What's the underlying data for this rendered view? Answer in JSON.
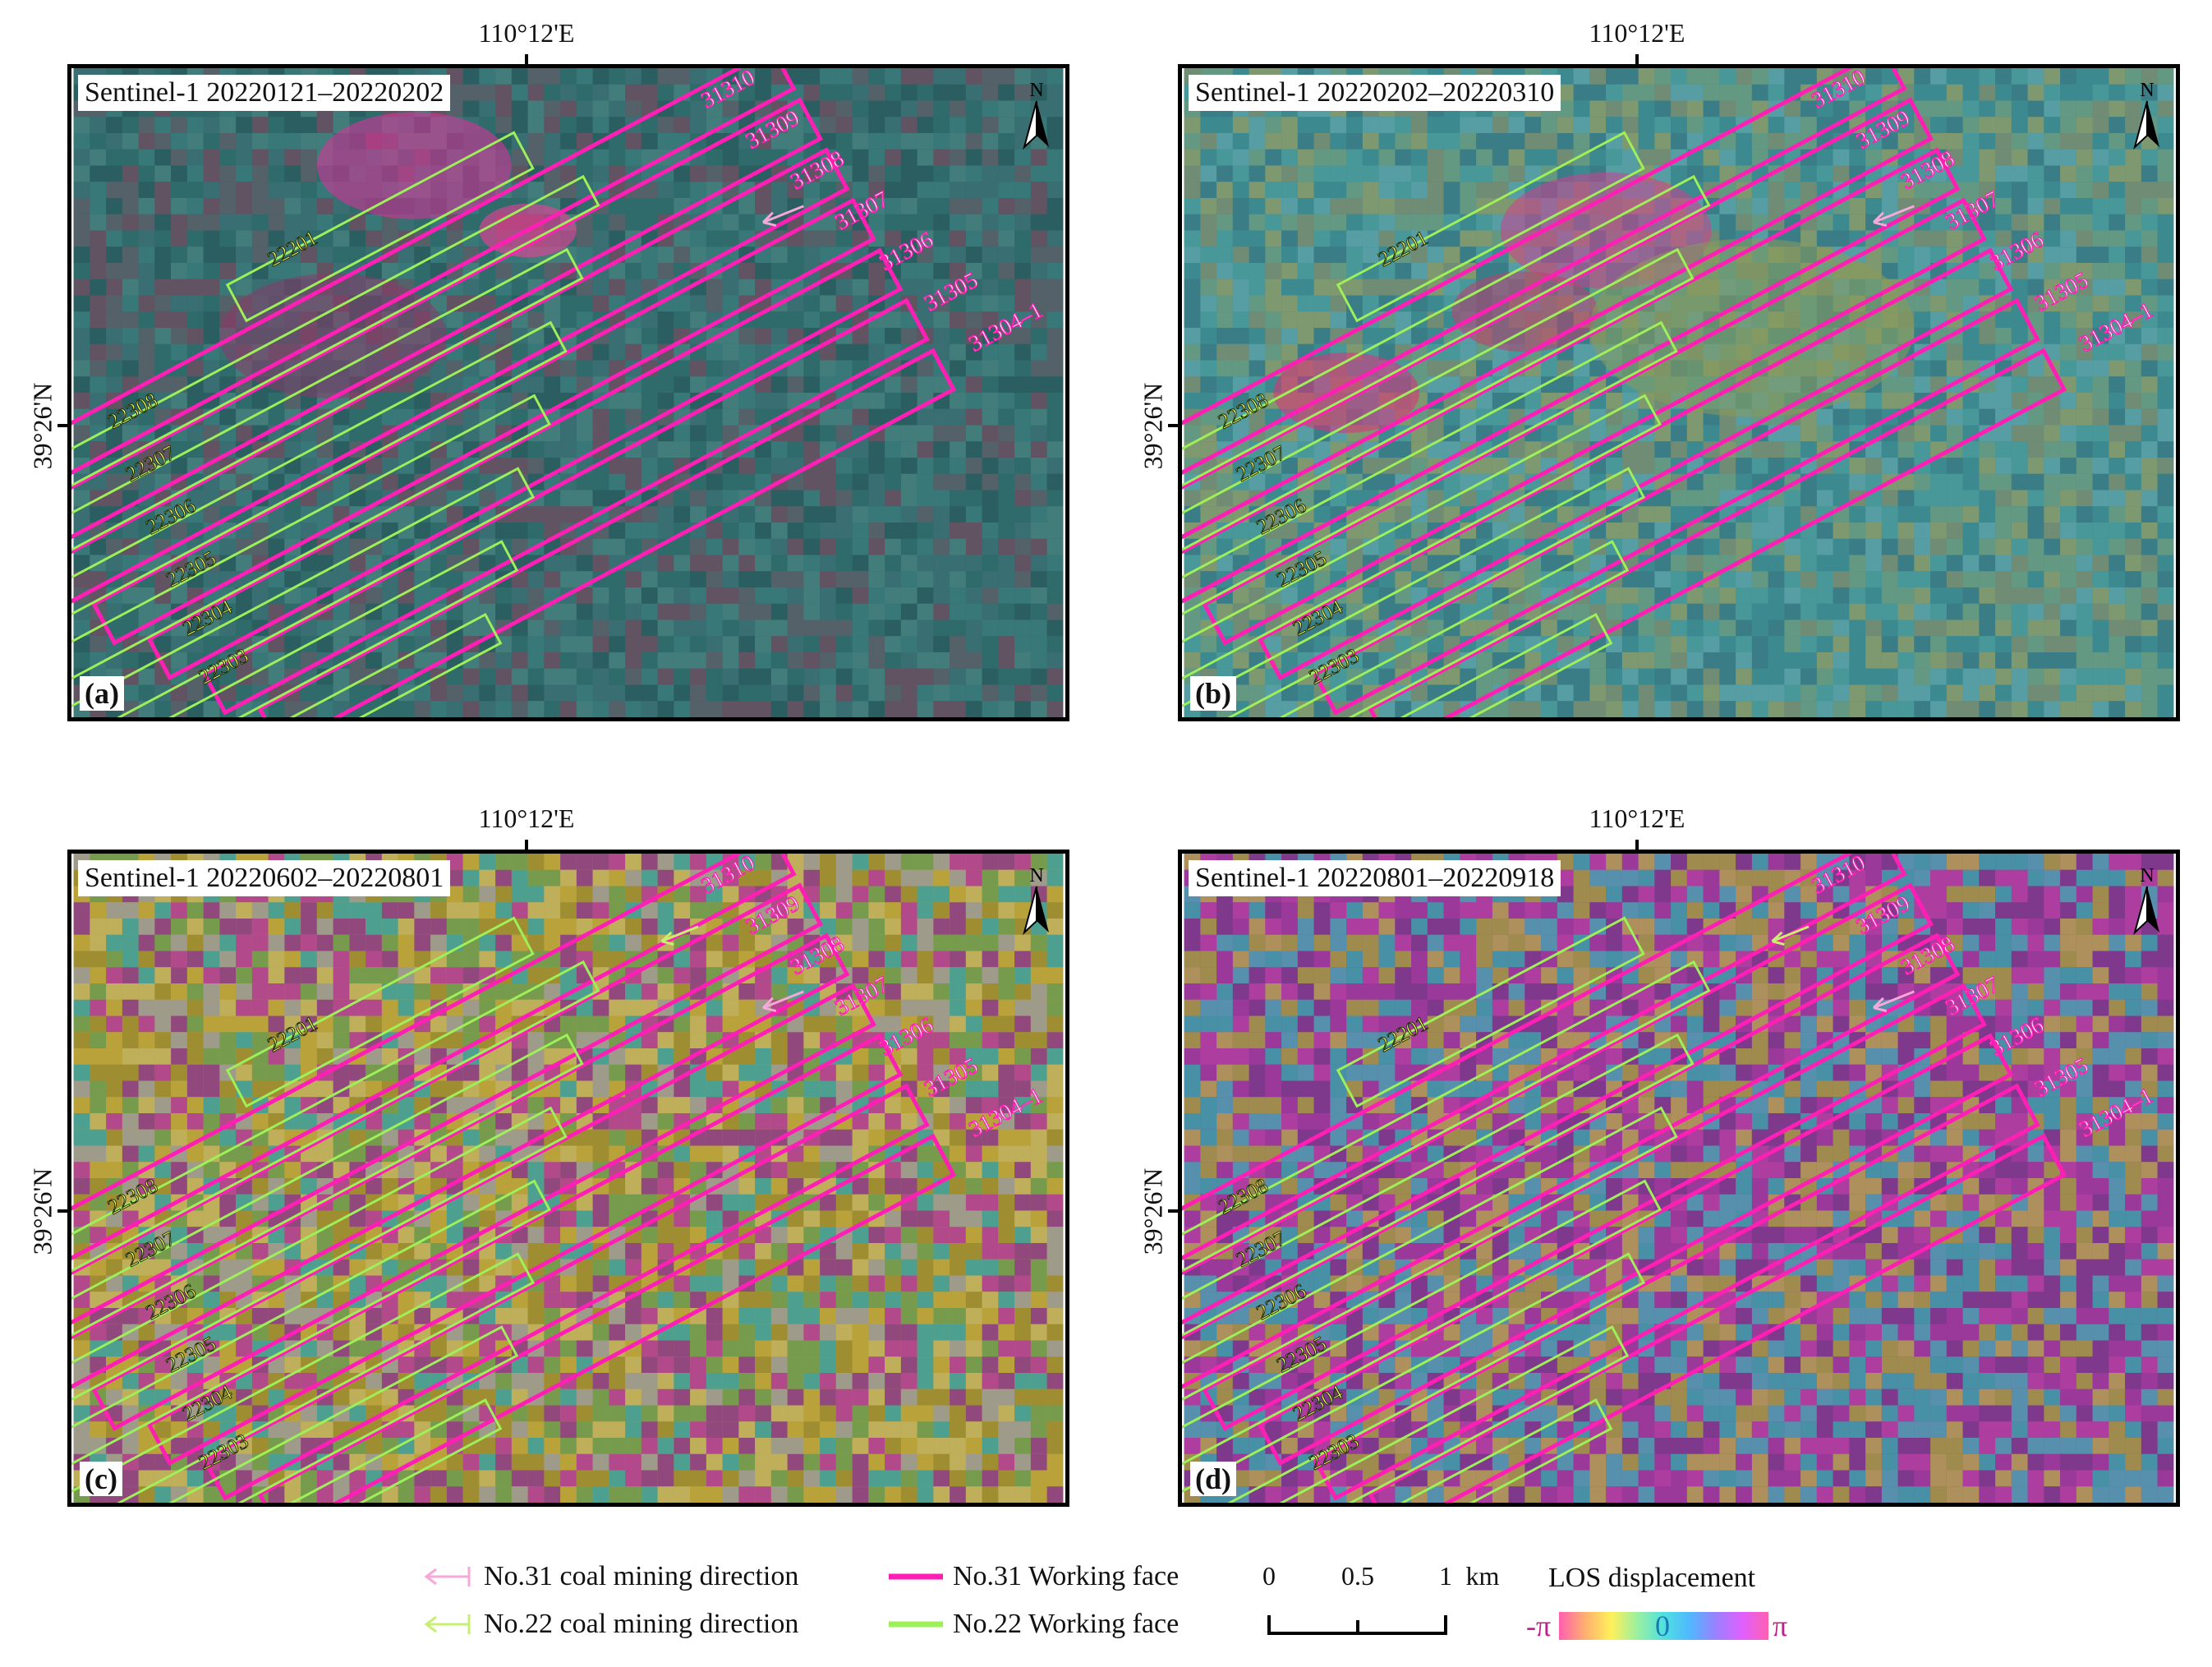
{
  "panels": [
    {
      "id": "a",
      "label": "(a)",
      "title": "Sentinel-1 20220121–20220202"
    },
    {
      "id": "b",
      "label": "(b)",
      "title": "Sentinel-1 20220202–20220310"
    },
    {
      "id": "c",
      "label": "(c)",
      "title": "Sentinel-1 20220602–20220801"
    },
    {
      "id": "d",
      "label": "(d)",
      "title": "Sentinel-1 20220801–20220918"
    }
  ],
  "longitude_label": "110°12'E",
  "latitude_label": "39°26'N",
  "north_label": "N",
  "working_faces_31": [
    "31310",
    "31309",
    "31308",
    "31307",
    "31306",
    "31305",
    "31304–1"
  ],
  "working_faces_22": [
    "22201",
    "22308",
    "22307",
    "22306",
    "22305",
    "22304",
    "22303"
  ],
  "legend": {
    "dir31": "No.31 coal mining direction",
    "dir22": "No.22 coal mining direction",
    "face31": "No.31 Working face",
    "face22": "No.22 Working face"
  },
  "scalebar": {
    "ticks": [
      "0",
      "0.5",
      "1"
    ],
    "unit": "km"
  },
  "colorbar": {
    "title": "LOS displacement",
    "min": "-π",
    "mid": "0",
    "max": "π"
  },
  "colors": {
    "face31": "#ff1fb4",
    "face22": "#9ef05a",
    "dir31": "#f7a8d8",
    "dir22": "#c8f070"
  }
}
